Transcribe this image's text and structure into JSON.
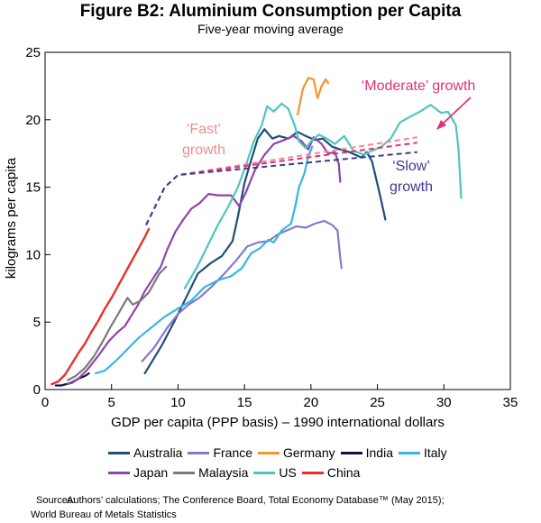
{
  "figure": {
    "title": "Figure B2: Aluminium Consumption per Capita",
    "subtitle": "Five-year moving average"
  },
  "sources": {
    "label": "Sources:",
    "line1": "Authors’ calculations; The Conference Board, Total Economy Database™ (May 2015);",
    "line2": "World Bureau of Metals Statistics"
  },
  "chart_data": {
    "type": "line",
    "title": "Aluminium Consumption per Capita",
    "xlabel": "GDP per capita (PPP basis) – 1990 international dollars",
    "ylabel": "kilograms per capita",
    "xlim": [
      0,
      35
    ],
    "ylim": [
      0,
      25
    ],
    "xticks": [
      0,
      5,
      10,
      15,
      20,
      25,
      30,
      35
    ],
    "yticks": [
      0,
      5,
      10,
      15,
      20,
      25
    ],
    "legend_position": "bottom",
    "series": [
      {
        "name": "Australia",
        "color": "#1f4e79",
        "width": 2.2,
        "points": [
          [
            7.5,
            1.2
          ],
          [
            8.0,
            2.0
          ],
          [
            8.8,
            3.3
          ],
          [
            9.8,
            5.2
          ],
          [
            10.8,
            7.2
          ],
          [
            11.5,
            8.6
          ],
          [
            12.5,
            9.4
          ],
          [
            13.3,
            9.9
          ],
          [
            14.1,
            11.0
          ],
          [
            14.5,
            12.8
          ],
          [
            15.0,
            15.3
          ],
          [
            15.5,
            17.0
          ],
          [
            16.0,
            18.6
          ],
          [
            16.5,
            19.3
          ],
          [
            17.1,
            18.6
          ],
          [
            17.6,
            18.8
          ],
          [
            18.3,
            18.6
          ],
          [
            19.0,
            19.1
          ],
          [
            19.6,
            18.8
          ],
          [
            20.3,
            18.5
          ],
          [
            20.9,
            18.6
          ],
          [
            21.6,
            18.0
          ],
          [
            22.2,
            17.8
          ],
          [
            22.9,
            17.6
          ],
          [
            23.8,
            17.2
          ],
          [
            24.2,
            17.6
          ],
          [
            24.6,
            16.9
          ],
          [
            25.2,
            14.4
          ],
          [
            25.6,
            12.6
          ]
        ]
      },
      {
        "name": "France",
        "color": "#8878c8",
        "width": 2.2,
        "points": [
          [
            7.3,
            2.1
          ],
          [
            8.2,
            3.1
          ],
          [
            9.2,
            4.6
          ],
          [
            10.0,
            5.6
          ],
          [
            10.8,
            6.3
          ],
          [
            11.6,
            6.8
          ],
          [
            12.5,
            7.6
          ],
          [
            13.5,
            8.6
          ],
          [
            14.4,
            9.6
          ],
          [
            15.2,
            10.6
          ],
          [
            16.0,
            10.9
          ],
          [
            16.8,
            11.0
          ],
          [
            17.5,
            11.5
          ],
          [
            18.2,
            11.8
          ],
          [
            18.9,
            12.1
          ],
          [
            19.6,
            12.0
          ],
          [
            20.3,
            12.3
          ],
          [
            21.0,
            12.5
          ],
          [
            21.6,
            12.2
          ],
          [
            22.0,
            11.8
          ],
          [
            22.2,
            9.8
          ],
          [
            22.3,
            9.0
          ]
        ]
      },
      {
        "name": "Germany",
        "color": "#f0962e",
        "width": 2.2,
        "points": [
          [
            19.0,
            20.4
          ],
          [
            19.4,
            22.3
          ],
          [
            19.8,
            23.1
          ],
          [
            20.2,
            23.0
          ],
          [
            20.5,
            21.6
          ],
          [
            20.8,
            22.5
          ],
          [
            21.1,
            23.0
          ],
          [
            21.3,
            22.7
          ]
        ]
      },
      {
        "name": "India",
        "color": "#101445",
        "width": 2.2,
        "points": [
          [
            0.8,
            0.3
          ],
          [
            1.2,
            0.3
          ],
          [
            1.6,
            0.4
          ],
          [
            2.0,
            0.5
          ],
          [
            2.5,
            0.8
          ],
          [
            3.0,
            1.0
          ],
          [
            3.3,
            1.2
          ]
        ]
      },
      {
        "name": "Italy",
        "color": "#38b4e6",
        "width": 2.2,
        "points": [
          [
            3.8,
            1.2
          ],
          [
            4.5,
            1.4
          ],
          [
            5.3,
            2.1
          ],
          [
            6.0,
            2.8
          ],
          [
            7.0,
            3.8
          ],
          [
            8.0,
            4.6
          ],
          [
            9.0,
            5.4
          ],
          [
            10.0,
            6.0
          ],
          [
            11.0,
            6.6
          ],
          [
            12.0,
            7.6
          ],
          [
            13.0,
            8.1
          ],
          [
            14.0,
            8.4
          ],
          [
            14.8,
            9.0
          ],
          [
            15.5,
            10.1
          ],
          [
            16.2,
            10.5
          ],
          [
            16.8,
            11.1
          ],
          [
            17.2,
            10.9
          ],
          [
            17.8,
            11.8
          ],
          [
            18.5,
            12.3
          ],
          [
            18.9,
            13.9
          ],
          [
            18.8,
            13.5
          ],
          [
            19.1,
            15.0
          ],
          [
            19.5,
            16.0
          ],
          [
            19.8,
            17.3
          ],
          [
            20.1,
            18.0
          ]
        ]
      },
      {
        "name": "Japan",
        "color": "#8e44ad",
        "width": 2.2,
        "points": [
          [
            1.7,
            0.4
          ],
          [
            2.5,
            0.8
          ],
          [
            3.2,
            1.5
          ],
          [
            4.0,
            2.5
          ],
          [
            4.8,
            3.6
          ],
          [
            5.5,
            4.3
          ],
          [
            6.0,
            4.7
          ],
          [
            6.5,
            5.5
          ],
          [
            7.0,
            6.3
          ],
          [
            7.5,
            7.3
          ],
          [
            8.1,
            8.2
          ],
          [
            8.7,
            9.1
          ],
          [
            9.2,
            10.4
          ],
          [
            9.8,
            11.7
          ],
          [
            10.4,
            12.6
          ],
          [
            11.0,
            13.4
          ],
          [
            11.6,
            13.8
          ],
          [
            12.3,
            14.5
          ],
          [
            13.0,
            14.4
          ],
          [
            14.0,
            14.4
          ],
          [
            14.6,
            13.6
          ],
          [
            15.1,
            14.6
          ],
          [
            15.8,
            16.3
          ],
          [
            16.5,
            17.4
          ],
          [
            17.2,
            18.2
          ],
          [
            18.0,
            18.5
          ],
          [
            18.7,
            18.8
          ],
          [
            19.3,
            18.4
          ],
          [
            19.8,
            17.8
          ],
          [
            20.2,
            18.7
          ],
          [
            20.8,
            18.2
          ],
          [
            21.3,
            17.5
          ],
          [
            21.8,
            17.6
          ],
          [
            22.1,
            16.7
          ],
          [
            22.2,
            15.4
          ]
        ]
      },
      {
        "name": "Malaysia",
        "color": "#7a7a7a",
        "width": 2.2,
        "points": [
          [
            1.7,
            0.7
          ],
          [
            2.3,
            1.0
          ],
          [
            3.0,
            1.6
          ],
          [
            3.7,
            2.5
          ],
          [
            4.3,
            3.5
          ],
          [
            4.9,
            4.6
          ],
          [
            5.5,
            5.6
          ],
          [
            5.9,
            6.3
          ],
          [
            6.2,
            6.8
          ],
          [
            6.6,
            6.3
          ],
          [
            7.2,
            6.6
          ],
          [
            7.8,
            7.2
          ],
          [
            8.2,
            7.9
          ],
          [
            8.6,
            8.6
          ],
          [
            9.1,
            9.1
          ]
        ]
      },
      {
        "name": "US",
        "color": "#4ec6bf",
        "width": 2.2,
        "points": [
          [
            10.5,
            7.5
          ],
          [
            11.5,
            9.2
          ],
          [
            12.3,
            10.8
          ],
          [
            13.0,
            12.2
          ],
          [
            13.8,
            13.6
          ],
          [
            14.5,
            15.0
          ],
          [
            15.1,
            16.6
          ],
          [
            15.7,
            18.4
          ],
          [
            16.3,
            19.6
          ],
          [
            16.7,
            21.0
          ],
          [
            17.2,
            20.6
          ],
          [
            17.8,
            21.2
          ],
          [
            18.3,
            20.8
          ],
          [
            18.8,
            19.5
          ],
          [
            19.1,
            18.4
          ],
          [
            19.6,
            17.9
          ],
          [
            20.1,
            18.5
          ],
          [
            20.6,
            18.9
          ],
          [
            21.2,
            18.6
          ],
          [
            21.8,
            18.2
          ],
          [
            22.5,
            18.8
          ],
          [
            23.2,
            17.7
          ],
          [
            24.0,
            17.4
          ],
          [
            24.6,
            17.7
          ],
          [
            25.3,
            18.0
          ],
          [
            26.0,
            18.6
          ],
          [
            26.7,
            19.8
          ],
          [
            27.4,
            20.2
          ],
          [
            28.2,
            20.6
          ],
          [
            29.0,
            21.1
          ],
          [
            29.8,
            20.5
          ],
          [
            30.3,
            20.6
          ],
          [
            30.9,
            19.6
          ],
          [
            31.1,
            17.8
          ],
          [
            31.2,
            16.0
          ],
          [
            31.3,
            14.2
          ]
        ]
      },
      {
        "name": "China",
        "color": "#e8302a",
        "width": 2.4,
        "points": [
          [
            0.5,
            0.4
          ],
          [
            1.0,
            0.6
          ],
          [
            1.5,
            1.1
          ],
          [
            2.0,
            1.9
          ],
          [
            2.5,
            2.7
          ],
          [
            3.0,
            3.4
          ],
          [
            3.5,
            4.3
          ],
          [
            4.0,
            5.1
          ],
          [
            4.5,
            6.0
          ],
          [
            5.0,
            6.8
          ],
          [
            5.5,
            7.7
          ],
          [
            6.0,
            8.6
          ],
          [
            6.5,
            9.5
          ],
          [
            7.0,
            10.4
          ],
          [
            7.5,
            11.3
          ],
          [
            7.8,
            11.9
          ]
        ]
      }
    ],
    "projections": [
      {
        "name": "Fast",
        "color": "#f28b8b",
        "points": [
          [
            7.6,
            12.2
          ],
          [
            9.0,
            15.0
          ],
          [
            10.0,
            15.9
          ],
          [
            28.0,
            18.7
          ]
        ]
      },
      {
        "name": "Moderate",
        "color": "#e0307a",
        "points": [
          [
            7.6,
            12.2
          ],
          [
            9.0,
            15.0
          ],
          [
            10.0,
            15.9
          ],
          [
            28.0,
            18.3
          ]
        ]
      },
      {
        "name": "Slow",
        "color": "#3d3b8e",
        "points": [
          [
            7.6,
            12.2
          ],
          [
            9.0,
            15.0
          ],
          [
            10.0,
            15.9
          ],
          [
            28.0,
            17.6
          ]
        ]
      }
    ],
    "annotations": {
      "fast_line1": {
        "text": "‘Fast’",
        "color": "#f28b8b"
      },
      "fast_line2": {
        "text": "growth",
        "color": "#f28b8b"
      },
      "moderate": {
        "text": "‘Moderate’ growth",
        "color": "#e0307a"
      },
      "slow_line1": {
        "text": "‘Slow’",
        "color": "#3d3b8e"
      },
      "slow_line2": {
        "text": "growth",
        "color": "#3d3b8e"
      }
    },
    "legend": {
      "rows": [
        [
          "Australia",
          "France",
          "Germany",
          "India",
          "Italy"
        ],
        [
          "Japan",
          "Malaysia",
          "US",
          "China"
        ]
      ]
    }
  }
}
